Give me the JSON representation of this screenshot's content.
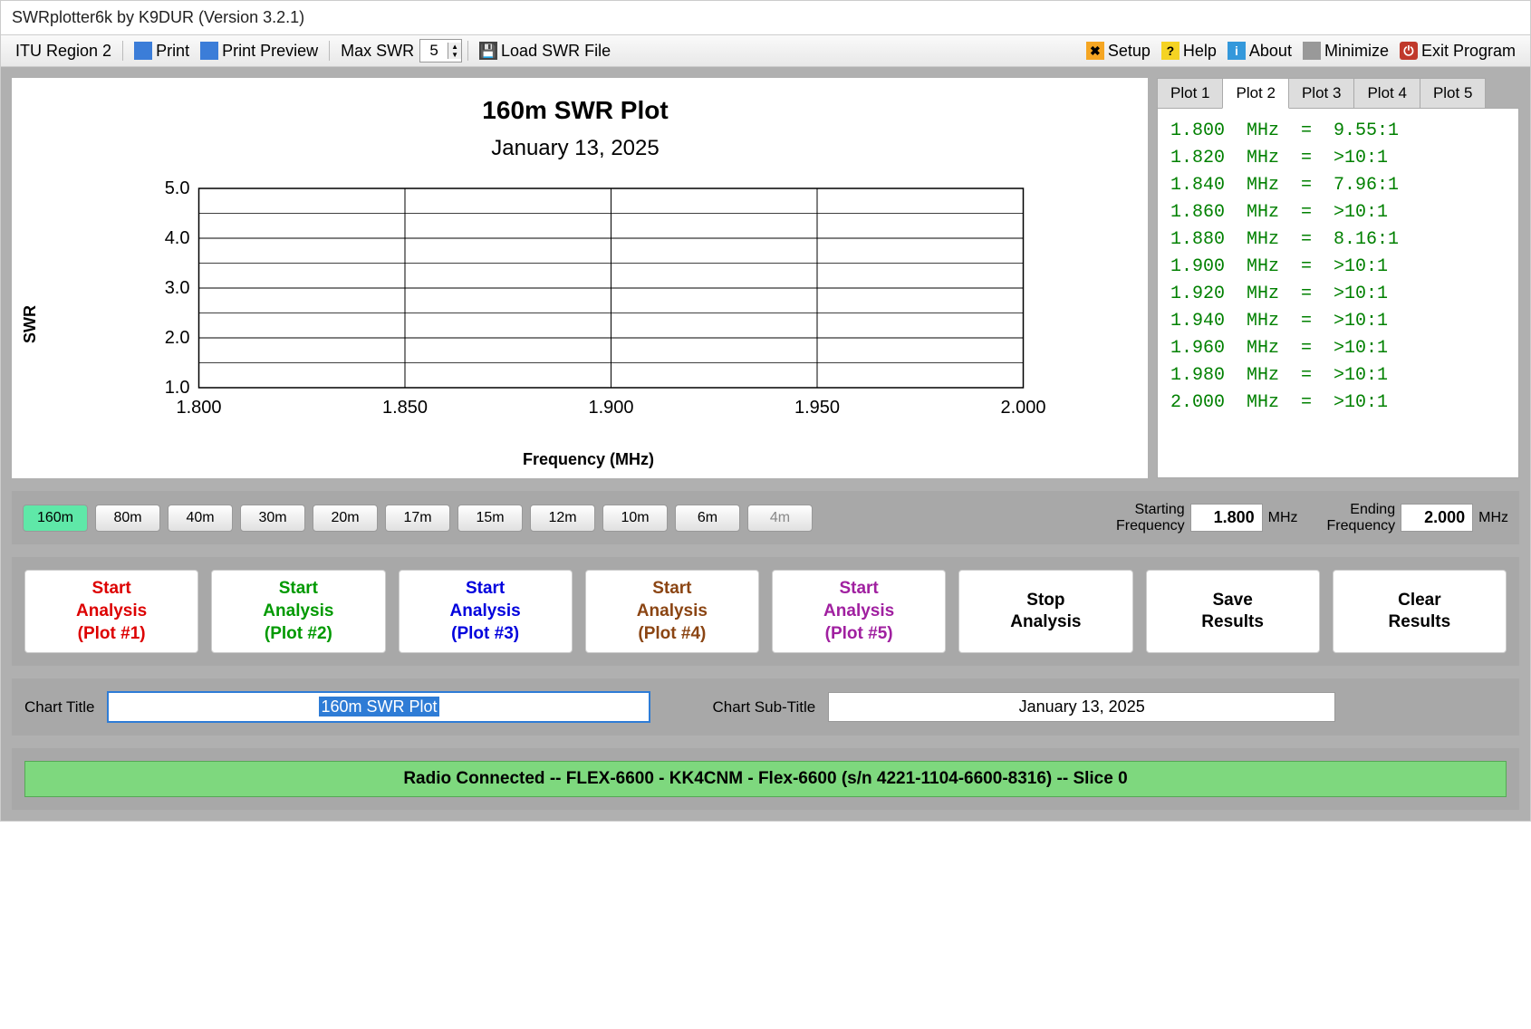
{
  "window": {
    "title": "SWRplotter6k by K9DUR (Version 3.2.1)"
  },
  "toolbar": {
    "region": "ITU Region 2",
    "print": "Print",
    "preview": "Print Preview",
    "maxswr_label": "Max SWR",
    "maxswr_value": "5",
    "load": "Load SWR File",
    "setup": "Setup",
    "help": "Help",
    "about": "About",
    "minimize": "Minimize",
    "exit": "Exit Program"
  },
  "chart": {
    "title": "160m SWR Plot",
    "subtitle": "January 13, 2025",
    "ylabel": "SWR",
    "xlabel": "Frequency (MHz)",
    "yticks": [
      "5.0",
      "4.0",
      "3.0",
      "2.0",
      "1.0"
    ],
    "xticks": [
      "1.800",
      "1.850",
      "1.900",
      "1.950",
      "2.000"
    ],
    "ylim": [
      1.0,
      5.0
    ],
    "xlim": [
      1.8,
      2.0
    ],
    "grid_major_y": [
      1.0,
      2.0,
      3.0,
      4.0,
      5.0
    ],
    "grid_minor_y": [
      1.5,
      2.5,
      3.5,
      4.5
    ],
    "grid_x": [
      1.8,
      1.85,
      1.9,
      1.95,
      2.0
    ],
    "bg": "#ffffff",
    "grid_color": "#000000"
  },
  "tabs": [
    "Plot 1",
    "Plot 2",
    "Plot 3",
    "Plot 4",
    "Plot 5"
  ],
  "active_tab": 1,
  "readings": [
    "1.800  MHz  =  9.55:1",
    "1.820  MHz  =  >10:1",
    "1.840  MHz  =  7.96:1",
    "1.860  MHz  =  >10:1",
    "1.880  MHz  =  8.16:1",
    "1.900  MHz  =  >10:1",
    "1.920  MHz  =  >10:1",
    "1.940  MHz  =  >10:1",
    "1.960  MHz  =  >10:1",
    "1.980  MHz  =  >10:1",
    "2.000  MHz  =  >10:1"
  ],
  "bands": [
    "160m",
    "80m",
    "40m",
    "30m",
    "20m",
    "17m",
    "15m",
    "12m",
    "10m",
    "6m",
    "4m"
  ],
  "active_band": 0,
  "dim_band": 10,
  "freq": {
    "start_label": "Starting\nFrequency",
    "start_val": "1.800",
    "end_label": "Ending\nFrequency",
    "end_val": "2.000",
    "unit": "MHz"
  },
  "actions": [
    {
      "l1": "Start",
      "l2": "Analysis",
      "l3": "(Plot #1)",
      "class": "c-red"
    },
    {
      "l1": "Start",
      "l2": "Analysis",
      "l3": "(Plot #2)",
      "class": "c-green"
    },
    {
      "l1": "Start",
      "l2": "Analysis",
      "l3": "(Plot #3)",
      "class": "c-blue"
    },
    {
      "l1": "Start",
      "l2": "Analysis",
      "l3": "(Plot #4)",
      "class": "c-brown"
    },
    {
      "l1": "Start",
      "l2": "Analysis",
      "l3": "(Plot #5)",
      "class": "c-purple"
    },
    {
      "l1": "Stop",
      "l2": "Analysis",
      "l3": "",
      "class": "c-black"
    },
    {
      "l1": "Save",
      "l2": "Results",
      "l3": "",
      "class": "c-black"
    },
    {
      "l1": "Clear",
      "l2": "Results",
      "l3": "",
      "class": "c-black"
    }
  ],
  "titles": {
    "label1": "Chart Title",
    "val1": "160m SWR Plot",
    "label2": "Chart Sub-Title",
    "val2": "January 13, 2025"
  },
  "status": "Radio Connected -- FLEX-6600 - KK4CNM - Flex-6600  (s/n 4221-1104-6600-8316) -- Slice 0"
}
